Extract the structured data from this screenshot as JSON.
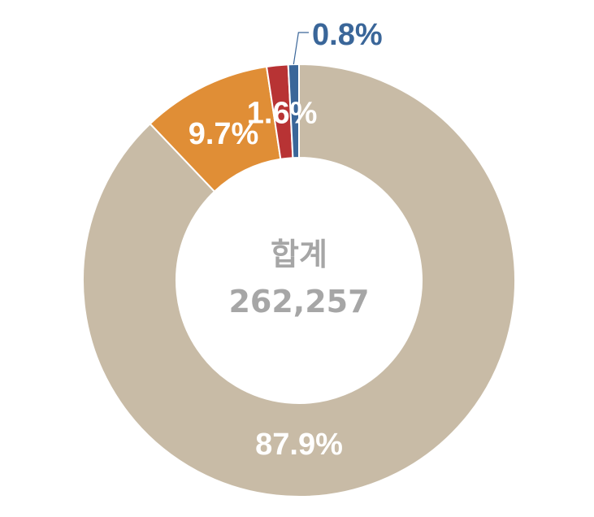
{
  "chart_data": {
    "type": "pie",
    "donut": true,
    "center_label": "합계",
    "center_value": "262,257",
    "slices": [
      {
        "value": 87.9,
        "label": "87.9%",
        "color": "#C8BBA6"
      },
      {
        "value": 9.7,
        "label": "9.7%",
        "color": "#E08E36"
      },
      {
        "value": 1.6,
        "label": "1.6%",
        "color": "#B83334"
      },
      {
        "value": 0.8,
        "label": "0.8%",
        "color": "#3A6699"
      }
    ],
    "label_text_color_inside": "#FFFFFF",
    "center_text_color": "#A6A6A6"
  }
}
